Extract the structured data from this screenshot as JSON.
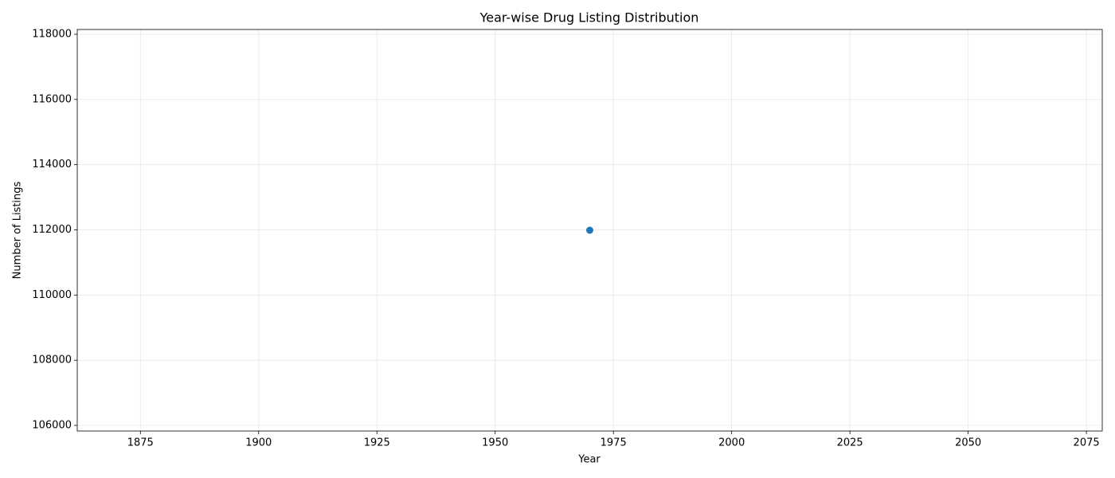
{
  "chart_data": {
    "type": "line",
    "title": "Year-wise Drug Listing Distribution",
    "xlabel": "Year",
    "ylabel": "Number of Listings",
    "x": [
      1970
    ],
    "series": [
      {
        "color": "#1f77b4",
        "values": [
          111988
        ]
      }
    ],
    "xlim": [
      1861.65,
      2078.35
    ],
    "xticks": [
      1875,
      1900,
      1925,
      1950,
      1975,
      2000,
      2025,
      2050,
      2075
    ],
    "ylim": [
      105829,
      118147
    ],
    "yticks": [
      106000,
      108000,
      110000,
      112000,
      114000,
      116000,
      118000
    ],
    "grid": true,
    "markers": true
  }
}
